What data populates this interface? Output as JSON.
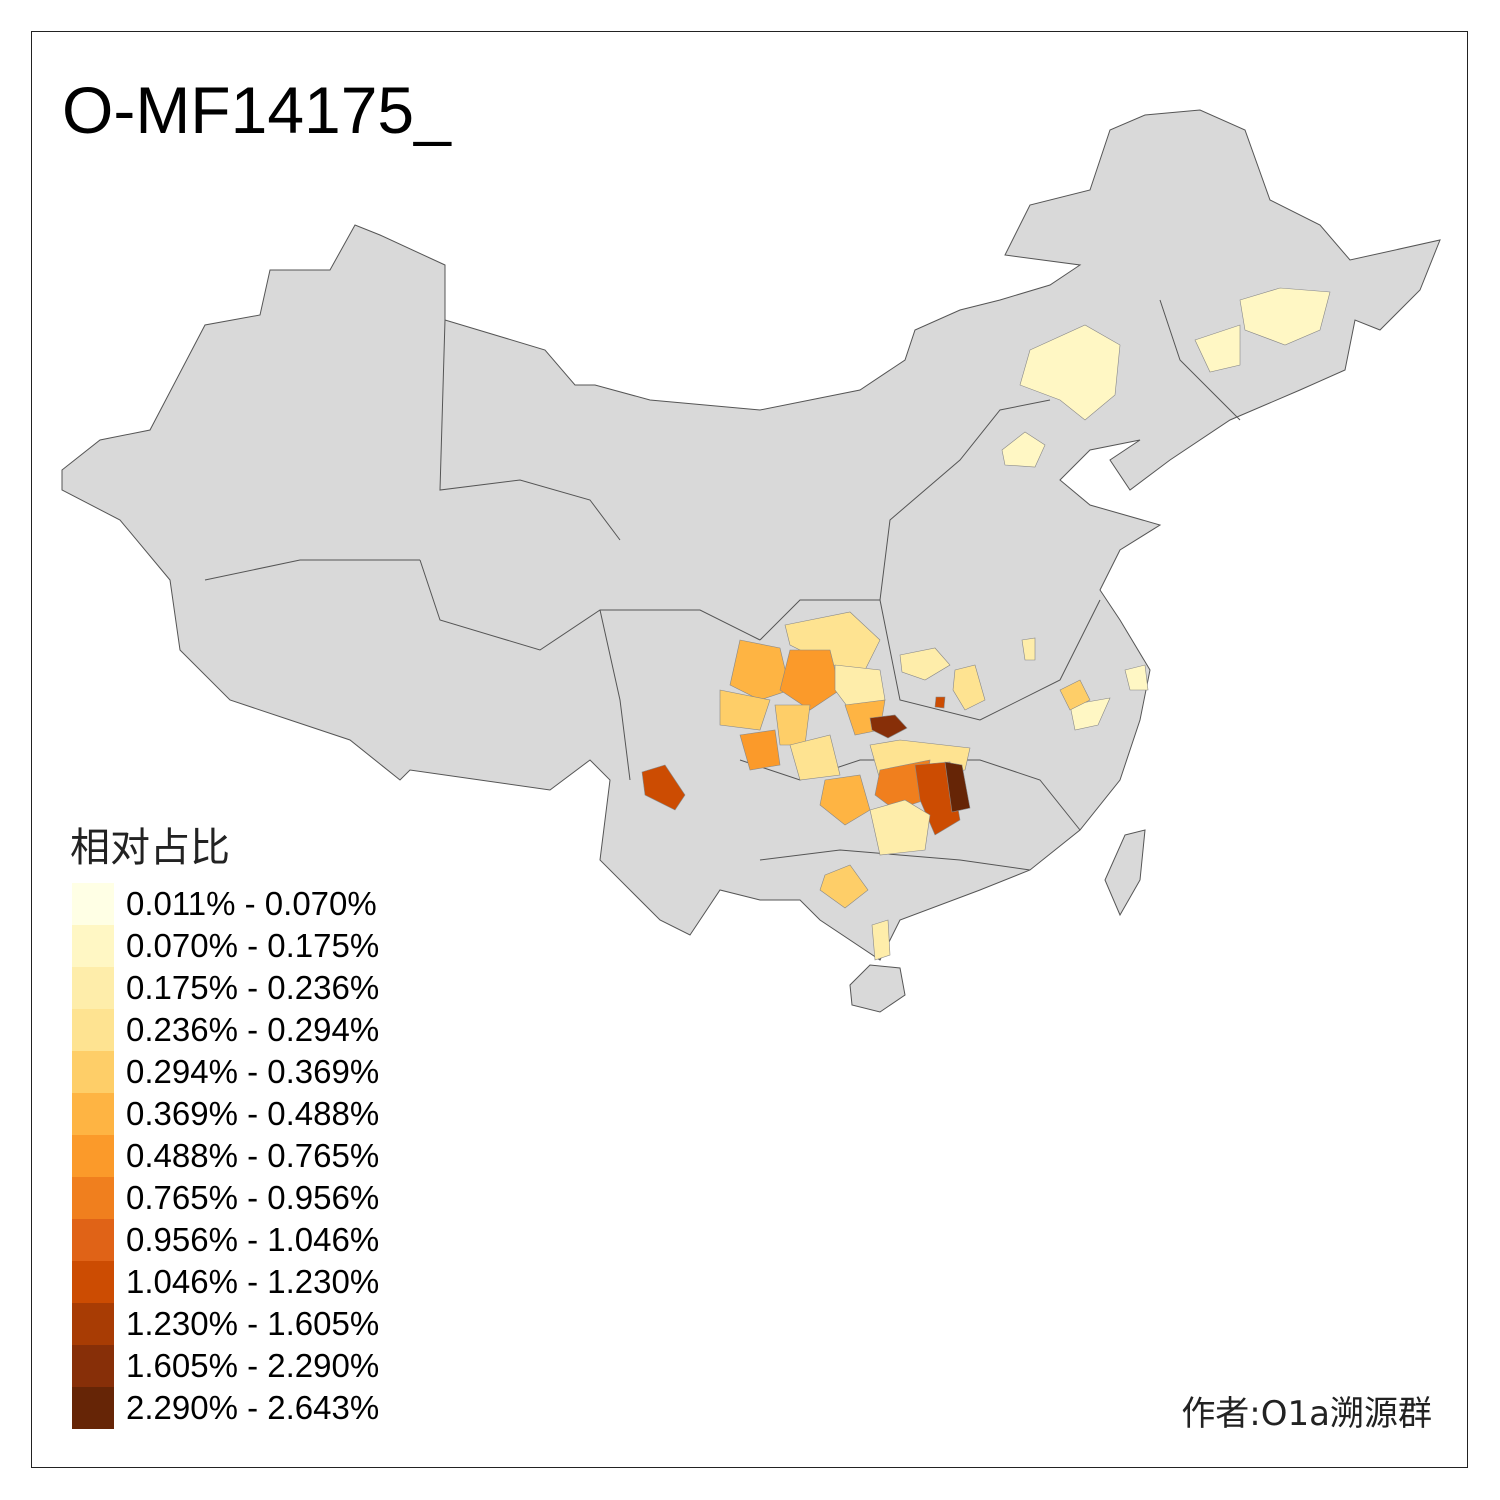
{
  "title": "O-MF14175_",
  "legend": {
    "title": "相对占比",
    "items": [
      {
        "label": "0.011% - 0.070%",
        "color": "#FFFFE5"
      },
      {
        "label": "0.070% - 0.175%",
        "color": "#FFF7C4"
      },
      {
        "label": "0.175% - 0.236%",
        "color": "#FEEDAA"
      },
      {
        "label": "0.236% - 0.294%",
        "color": "#FEE391"
      },
      {
        "label": "0.294% - 0.369%",
        "color": "#FECE68"
      },
      {
        "label": "0.369% - 0.488%",
        "color": "#FEB443"
      },
      {
        "label": "0.488% - 0.765%",
        "color": "#FB9A2A"
      },
      {
        "label": "0.765% - 0.956%",
        "color": "#F07F1E"
      },
      {
        "label": "0.956% - 1.046%",
        "color": "#E06317"
      },
      {
        "label": "1.046% - 1.230%",
        "color": "#CC4C02"
      },
      {
        "label": "1.230% - 1.605%",
        "color": "#A83C04"
      },
      {
        "label": "1.605% - 2.290%",
        "color": "#872F08"
      },
      {
        "label": "2.290% - 2.643%",
        "color": "#662506"
      }
    ]
  },
  "map": {
    "base_color": "#D9D9D9",
    "border_color": "#555555",
    "no_data_color": "#D9D9D9"
  },
  "author": "作者:O1a溯源群"
}
